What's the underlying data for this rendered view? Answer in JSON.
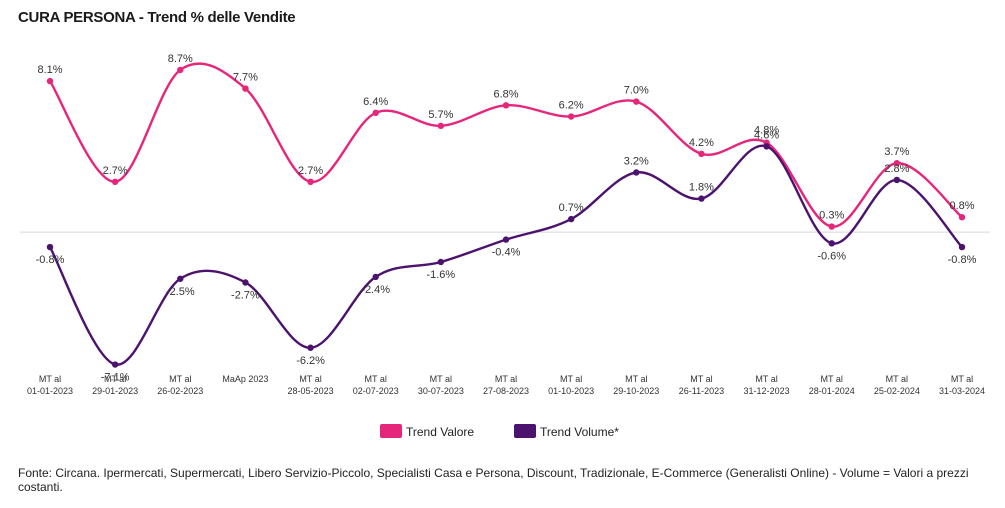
{
  "header": {
    "title": "CURA PERSONA - Trend % delle Vendite"
  },
  "footer": {
    "source": "Fonte: Circana. Ipermercati, Supermercati, Libero Servizio-Piccolo, Specialisti Casa e Persona, Discount, Tradizionale, E-Commerce (Generalisti Online) - Volume = Valori a prezzi costanti."
  },
  "chart_data": {
    "type": "line",
    "title": "CURA PERSONA - Trend % delle Vendite",
    "xlabel": "",
    "ylabel": "",
    "categories": [
      [
        "MT al",
        "01-01-2023"
      ],
      [
        "MT al",
        "29-01-2023"
      ],
      [
        "MT al",
        "26-02-2023"
      ],
      [
        "MaAp 2023"
      ],
      [
        "MT al",
        "28-05-2023"
      ],
      [
        "MT al",
        "02-07-2023"
      ],
      [
        "MT al",
        "30-07-2023"
      ],
      [
        "MT al",
        "27-08-2023"
      ],
      [
        "MT al",
        "01-10-2023"
      ],
      [
        "MT al",
        "29-10-2023"
      ],
      [
        "MT al",
        "26-11-2023"
      ],
      [
        "MT al",
        "31-12-2023"
      ],
      [
        "MT al",
        "28-01-2024"
      ],
      [
        "MT al",
        "25-02-2024"
      ],
      [
        "MT al",
        "31-03-2024"
      ]
    ],
    "series": [
      {
        "name": "Trend Valore",
        "color": "#e6267a",
        "values": [
          8.1,
          2.7,
          8.7,
          7.7,
          2.7,
          6.4,
          5.7,
          6.8,
          6.2,
          7.0,
          4.2,
          4.8,
          0.3,
          3.7,
          0.8
        ],
        "labels": [
          "8.1%",
          "2.7%",
          "8.7%",
          "7.7%",
          "2.7%",
          "6.4%",
          "5.7%",
          "6.8%",
          "6.2%",
          "7.0%",
          "4.2%",
          "4.8%",
          "0.3%",
          "3.7%",
          "0.8%"
        ]
      },
      {
        "name": "Trend Volume*",
        "color": "#4b136e",
        "values": [
          -0.8,
          -7.1,
          -2.5,
          -2.7,
          -6.2,
          -2.4,
          -1.6,
          -0.4,
          0.7,
          3.2,
          1.8,
          4.6,
          -0.6,
          2.8,
          -0.8
        ],
        "labels": [
          "-0.8%",
          "-7.1%",
          "-2.5%",
          "-2.7%",
          "-6.2%",
          "-2.4%",
          "-1.6%",
          "-0.4%",
          "0.7%",
          "3.2%",
          "1.8%",
          "4.6%",
          "-0.6%",
          "2.8%",
          "-0.8%"
        ]
      }
    ],
    "ylim": [
      -7.5,
      9.5
    ],
    "grid": false,
    "zero_line": true,
    "legend_position": "bottom-center"
  }
}
